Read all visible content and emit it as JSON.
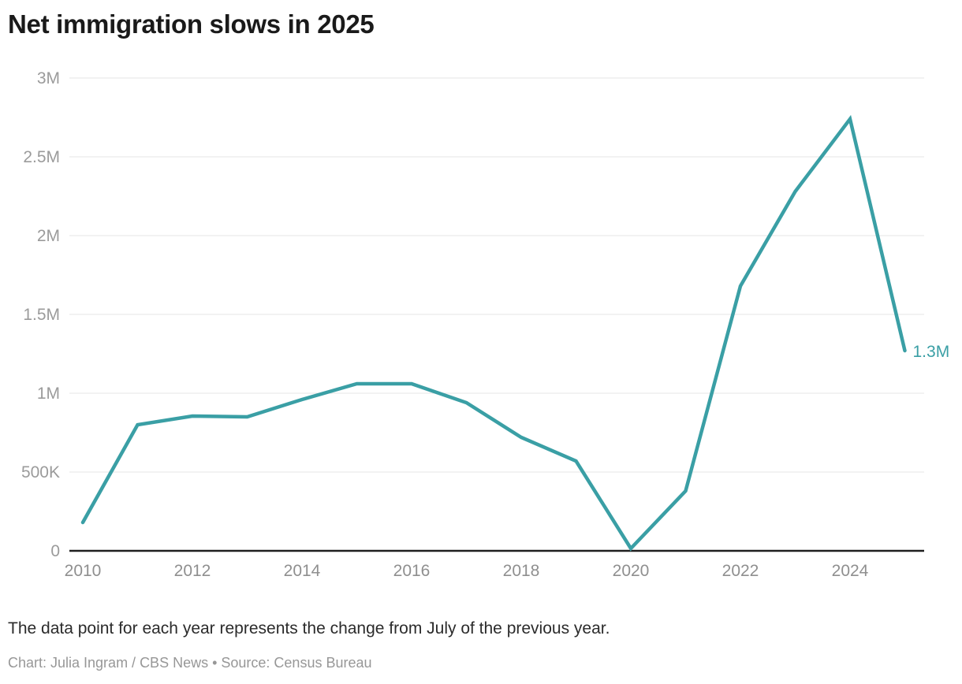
{
  "header": {
    "title": "Net immigration slows in 2025"
  },
  "footer": {
    "note": "The data point for each year represents the change from July of the previous year.",
    "credit": "Chart: Julia Ingram / CBS News • Source: Census Bureau"
  },
  "chart_data": {
    "type": "line",
    "title": "Net immigration slows in 2025",
    "x": [
      2010,
      2011,
      2012,
      2013,
      2014,
      2015,
      2016,
      2017,
      2018,
      2019,
      2020,
      2021,
      2022,
      2023,
      2024,
      2025
    ],
    "values": [
      180000,
      800000,
      855000,
      850000,
      960000,
      1060000,
      1060000,
      940000,
      720000,
      570000,
      15000,
      380000,
      1680000,
      2280000,
      2740000,
      1270000
    ],
    "xlabel": "",
    "ylabel": "",
    "ylim": [
      0,
      3000000
    ],
    "grid": "horizontal",
    "legend": "none",
    "y_ticks": [
      {
        "value": 0,
        "label": "0"
      },
      {
        "value": 500000,
        "label": "500K"
      },
      {
        "value": 1000000,
        "label": "1M"
      },
      {
        "value": 1500000,
        "label": "1.5M"
      },
      {
        "value": 2000000,
        "label": "2M"
      },
      {
        "value": 2500000,
        "label": "2.5M"
      },
      {
        "value": 3000000,
        "label": "3M"
      }
    ],
    "x_ticks": [
      "2010",
      "2012",
      "2014",
      "2016",
      "2018",
      "2020",
      "2022",
      "2024"
    ],
    "end_annotation": "1.3M",
    "colors": {
      "line": "#3a9fa5",
      "grid": "#e6e6e6",
      "axis": "#1f1f1f",
      "y_tick_label": "#9b9b9b",
      "x_tick_label": "#8f8f8f"
    }
  }
}
